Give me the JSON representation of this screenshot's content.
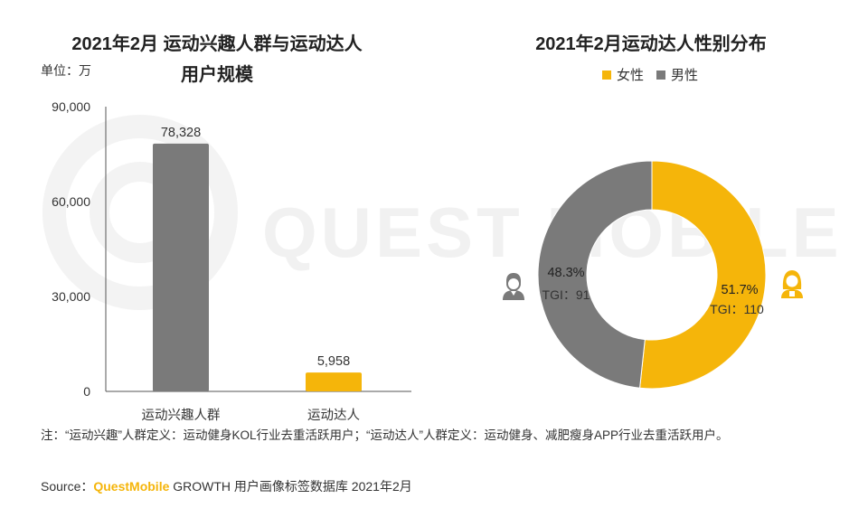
{
  "colors": {
    "female": "#f5b50a",
    "male": "#7a7a7a",
    "bar_interest": "#7a7a7a",
    "bar_talent": "#f5b50a"
  },
  "watermark": "QUEST MOBILE",
  "chart_data": [
    {
      "type": "bar",
      "title_line1": "2021年2月 运动兴趣人群与运动达人",
      "title_line2": "用户规模",
      "unit_label": "单位：万",
      "categories": [
        "运动兴趣人群",
        "运动达人"
      ],
      "values": [
        78328,
        5958
      ],
      "value_labels": [
        "78,328",
        "5,958"
      ],
      "ylim": [
        0,
        90000
      ],
      "yticks": [
        0,
        30000,
        60000,
        90000
      ],
      "ytick_labels": [
        "0",
        "30,000",
        "60,000",
        "90,000"
      ]
    },
    {
      "type": "pie",
      "title": "2021年2月运动达人性别分布",
      "legend": [
        "女性",
        "男性"
      ],
      "slices": [
        {
          "name": "女性",
          "value": 51.7,
          "label": "51.7%",
          "tgi": "TGI：110"
        },
        {
          "name": "男性",
          "value": 48.3,
          "label": "48.3%",
          "tgi": "TGI：91"
        }
      ]
    }
  ],
  "note": "注：“运动兴趣”人群定义：运动健身KOL行业去重活跃用户；“运动达人”人群定义：运动健身、减肥瘦身APP行业去重活跃用户。",
  "source": {
    "prefix": "Source：",
    "brand": "QuestMobile",
    "rest": " GROWTH 用户画像标签数据库 2021年2月"
  }
}
